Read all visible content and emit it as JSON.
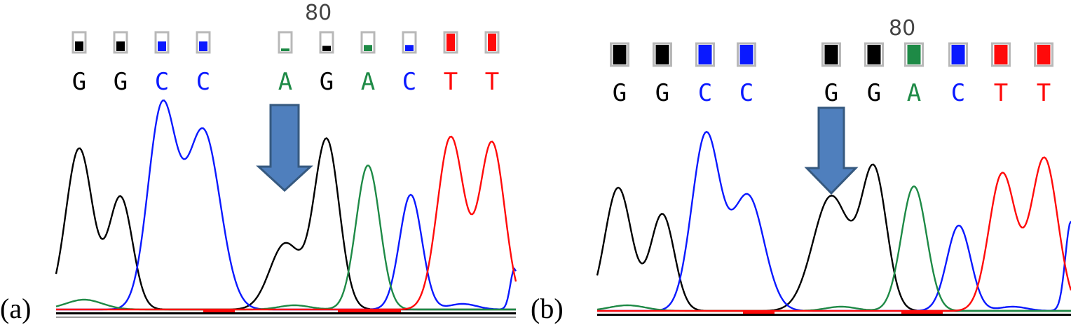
{
  "colors": {
    "A": "#1e8a46",
    "C": "#0a19ff",
    "G": "#000000",
    "T": "#ff0a0a",
    "arrow_fill": "#4f7fbd",
    "arrow_stroke": "#36597f"
  },
  "panels": [
    {
      "label": "(a)",
      "position_label": "80",
      "bases": [
        "G",
        "G",
        "C",
        "C",
        "A",
        "G",
        "A",
        "C",
        "T",
        "T"
      ],
      "quality_levels": [
        0.55,
        0.55,
        0.55,
        0.55,
        0.15,
        0.3,
        0.35,
        0.35,
        1.0,
        1.0
      ]
    },
    {
      "label": "(b)",
      "position_label": "80",
      "bases": [
        "G",
        "G",
        "C",
        "C",
        "G",
        "G",
        "A",
        "C",
        "T",
        "T"
      ],
      "quality_levels": [
        1.0,
        1.0,
        1.0,
        1.0,
        1.0,
        1.0,
        1.0,
        1.0,
        1.0,
        1.0
      ]
    }
  ]
}
